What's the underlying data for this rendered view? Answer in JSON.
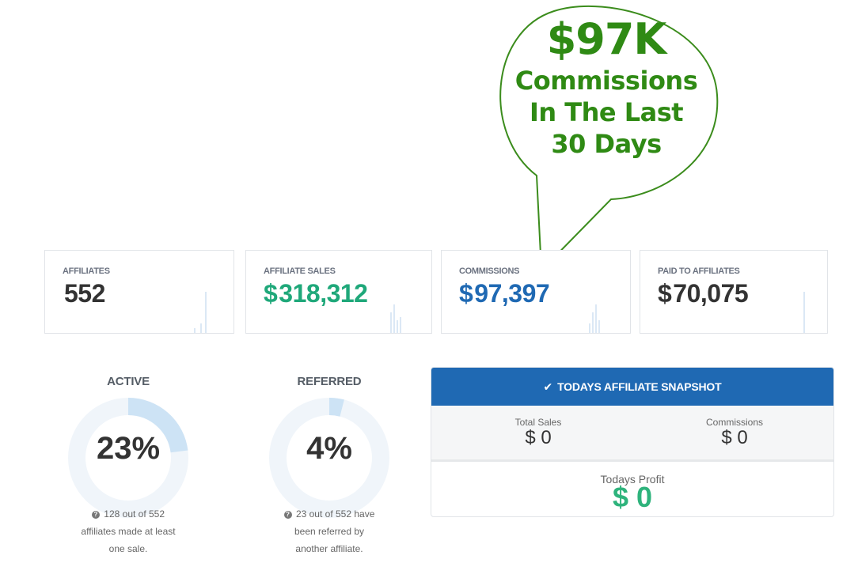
{
  "callout": {
    "amount": "$97K",
    "line1": "Commissions",
    "line2": "In The Last",
    "line3": "30 Days",
    "color": "#2f8a14"
  },
  "stats": [
    {
      "label": "AFFILIATES",
      "currency": "",
      "value": "552",
      "color": "#333333"
    },
    {
      "label": "AFFILIATE SALES",
      "currency": "$",
      "value": "318,312",
      "color": "#1fa87a"
    },
    {
      "label": "COMMISSIONS",
      "currency": "$",
      "value": "97,397",
      "color": "#1f69b3"
    },
    {
      "label": "PAID TO AFFILIATES",
      "currency": "$",
      "value": "70,075",
      "color": "#333333"
    }
  ],
  "donuts": {
    "active": {
      "title": "ACTIVE",
      "percent_text": "23%",
      "fraction": 0.23,
      "note": "128 out of 552 affiliates made at least one sale."
    },
    "referred": {
      "title": "REFERRED",
      "percent_text": "4%",
      "fraction": 0.04,
      "note": "23 out of 552 have been referred by another affiliate."
    }
  },
  "snapshot": {
    "title": "TODAYS AFFILIATE SNAPSHOT",
    "check_icon": "check-icon",
    "total_sales_label": "Total Sales",
    "total_sales_value": "$ 0",
    "commissions_label": "Commissions",
    "commissions_value": "$ 0",
    "profit_label": "Todays Profit",
    "profit_value": "$ 0",
    "header_color": "#1f69b3",
    "profit_color": "#2eb37c"
  }
}
